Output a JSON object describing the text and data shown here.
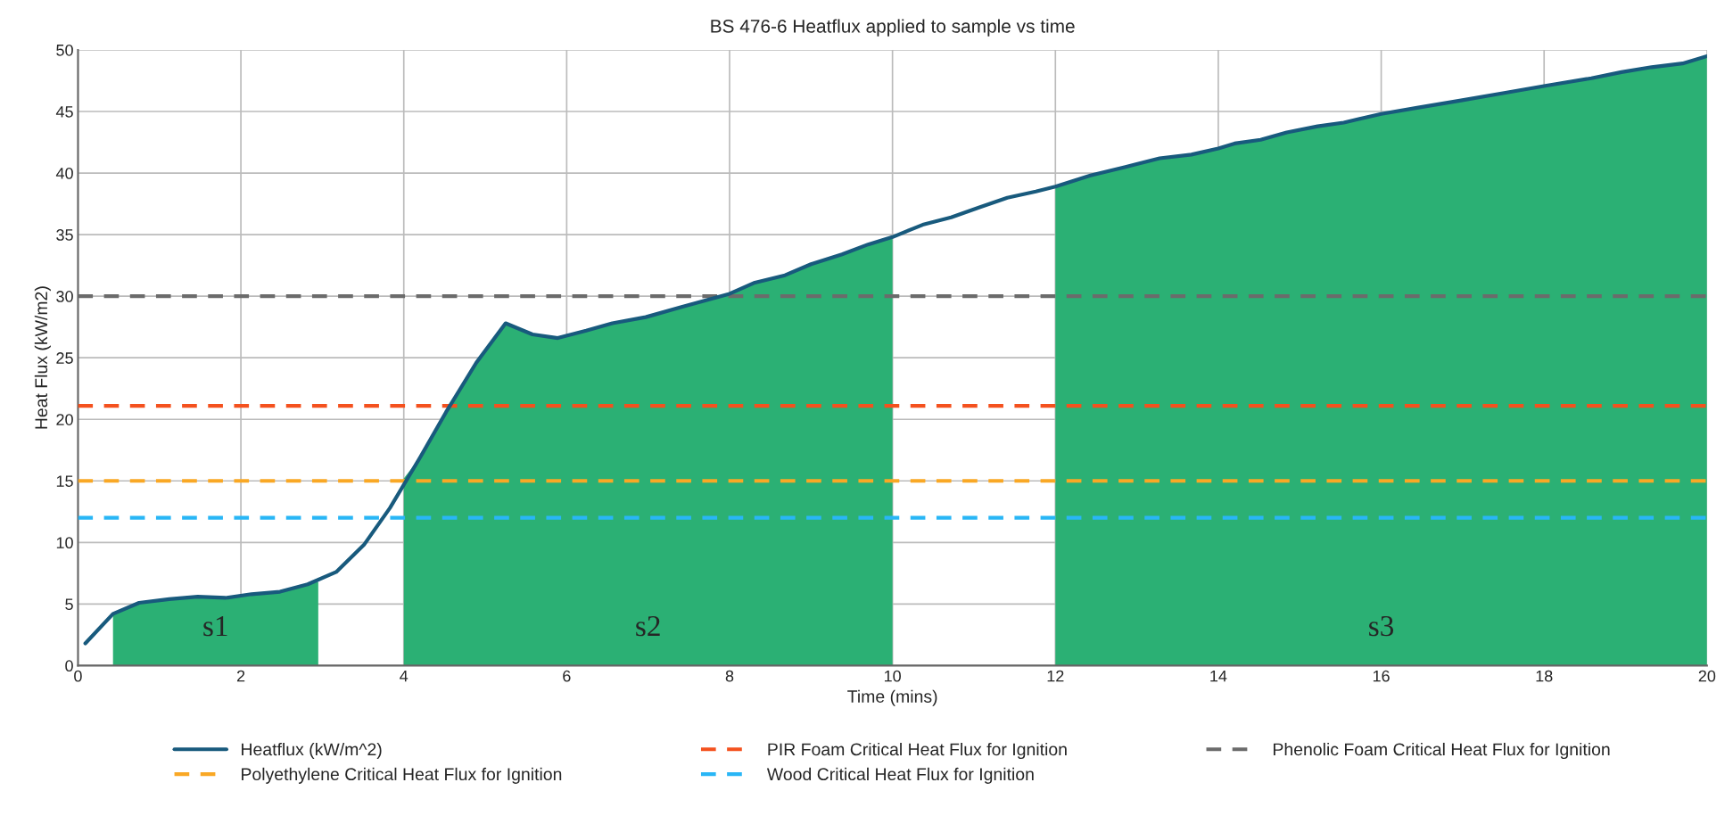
{
  "chart_data": {
    "type": "line",
    "title": "BS 476-6 Heatflux applied to sample vs time",
    "xlabel": "Time (mins)",
    "ylabel": "Heat Flux (kW/m2)",
    "xlim": [
      0,
      20
    ],
    "xticks": [
      0,
      2,
      4,
      6,
      8,
      10,
      12,
      14,
      16,
      18,
      20
    ],
    "ylim": [
      0,
      50
    ],
    "yticks": [
      0,
      5,
      10,
      15,
      20,
      25,
      30,
      35,
      40,
      45,
      50
    ],
    "grid": true,
    "legend": "bottom",
    "line_style": "solid",
    "marker": "none",
    "series": [
      {
        "name": "s1",
        "type": "area",
        "color": "#2bb074",
        "x": [
          0.43,
          0.75,
          1.12,
          1.47,
          1.81,
          2.13,
          2.48,
          2.82,
          2.95
        ],
        "values": [
          4.2,
          5.1,
          5.4,
          5.6,
          5.5,
          5.8,
          6.0,
          6.6,
          6.8
        ]
      },
      {
        "name": "s2",
        "type": "area",
        "color": "#2bb074",
        "x": [
          4.0,
          4.2,
          4.52,
          4.89,
          5.25,
          5.58,
          5.89,
          6.24,
          6.56,
          6.97,
          7.4,
          8.0,
          8.31,
          8.68,
          9.0,
          9.38,
          9.7,
          10.0
        ],
        "values": [
          15.2,
          16.9,
          20.6,
          24.6,
          27.8,
          26.9,
          26.6,
          27.2,
          27.8,
          28.3,
          29.1,
          30.2,
          31.1,
          31.7,
          32.6,
          33.4,
          34.2,
          34.8
        ]
      },
      {
        "name": "s3",
        "type": "area",
        "color": "#2bb074",
        "x": [
          12.0,
          12.43,
          12.86,
          13.28,
          13.67,
          14.0,
          14.2,
          14.52,
          14.84,
          15.22,
          15.54,
          16.0,
          16.44,
          16.98,
          17.51,
          18.03,
          18.58,
          18.95,
          19.32,
          19.7,
          20.0
        ],
        "values": [
          38.9,
          39.8,
          40.5,
          41.2,
          41.5,
          42.0,
          42.4,
          42.7,
          43.3,
          43.8,
          44.1,
          44.8,
          45.3,
          45.9,
          46.5,
          47.1,
          47.7,
          48.2,
          48.6,
          48.9,
          49.5
        ]
      },
      {
        "name": "Heatflux (kW/m^2)",
        "color": "#185a7d",
        "x": [
          0.09,
          0.43,
          0.75,
          1.12,
          1.47,
          1.81,
          2.13,
          2.48,
          2.82,
          3.17,
          3.51,
          3.83,
          4.2,
          4.52,
          4.89,
          5.25,
          5.58,
          5.89,
          6.24,
          6.56,
          6.97,
          7.4,
          8.0,
          8.31,
          8.68,
          9.0,
          9.38,
          9.7,
          10.0,
          10.37,
          10.72,
          11.06,
          11.41,
          11.76,
          12.0,
          12.43,
          12.86,
          13.28,
          13.67,
          14.0,
          14.2,
          14.52,
          14.84,
          15.22,
          15.54,
          16.0,
          16.44,
          16.98,
          17.51,
          18.03,
          18.58,
          18.95,
          19.32,
          19.7,
          20.0
        ],
        "values": [
          1.8,
          4.2,
          5.1,
          5.4,
          5.6,
          5.5,
          5.8,
          6.0,
          6.6,
          7.6,
          9.8,
          12.8,
          16.9,
          20.6,
          24.6,
          27.8,
          26.9,
          26.6,
          27.2,
          27.8,
          28.3,
          29.1,
          30.2,
          31.1,
          31.7,
          32.6,
          33.4,
          34.2,
          34.8,
          35.8,
          36.4,
          37.2,
          38.0,
          38.5,
          38.9,
          39.8,
          40.5,
          41.2,
          41.5,
          42.0,
          42.4,
          42.7,
          43.3,
          43.8,
          44.1,
          44.8,
          45.3,
          45.9,
          46.5,
          47.1,
          47.7,
          48.2,
          48.6,
          48.9,
          49.5
        ]
      }
    ],
    "ref_lines": [
      {
        "axis": "y",
        "value": 15,
        "label": "Polyethylene Critical Heat Flux for Ignition",
        "color": "#f9a825",
        "line_style": "dashed"
      },
      {
        "axis": "y",
        "value": 21.1,
        "label": "PIR Foam Critical Heat Flux for Ignition",
        "color": "#f4511e",
        "line_style": "dashed"
      },
      {
        "axis": "y",
        "value": 12,
        "label": "Wood Critical Heat Flux for Ignition",
        "color": "#29b6f6",
        "line_style": "dashed"
      },
      {
        "axis": "y",
        "value": 30,
        "label": "Phenolic Foam Critical Heat Flux for Ignition",
        "color": "#6b6b6b",
        "line_style": "dashed"
      }
    ]
  }
}
